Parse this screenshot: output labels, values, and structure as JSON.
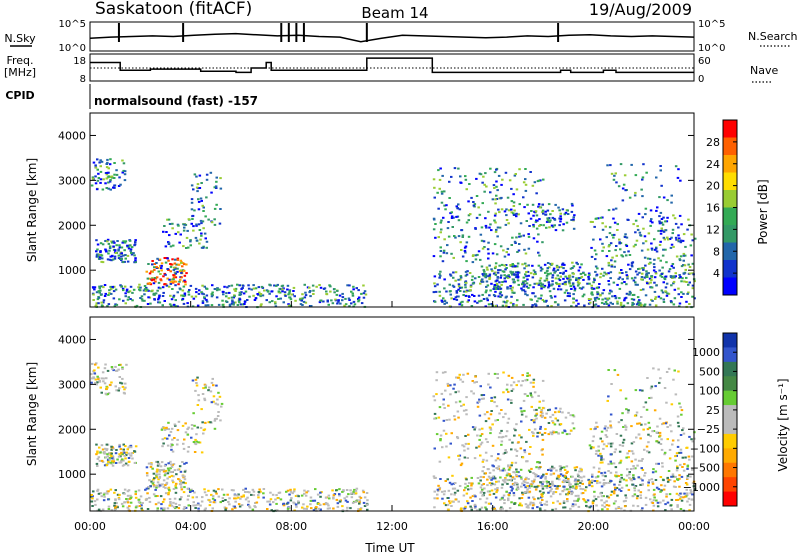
{
  "header": {
    "station": "Saskatoon (fitACF)",
    "beam": "Beam 14",
    "date": "19/Aug/2009"
  },
  "left_labels": {
    "nsky": "N.Sky",
    "freq": "Freq.",
    "freq_unit": "[MHz]",
    "cpid": "CPID"
  },
  "right_labels": {
    "nsearch": "N.Search",
    "nave": "Nave"
  },
  "cpid_text": "normalsound (fast) -157",
  "chart_data": [
    {
      "type": "line",
      "panel": "noise",
      "left_ticks": [
        "10^5",
        "10^0"
      ],
      "right_ticks": [
        "10^5",
        "10^0"
      ],
      "series": [
        {
          "name": "N.Sky",
          "values_log10": [
            2.2,
            2.4,
            2.5,
            2.6,
            2.5,
            2.7,
            2.9,
            3.0,
            2.8,
            2.6,
            2.7,
            2.5,
            2.4,
            1.6,
            2.2,
            2.7,
            2.6,
            2.5,
            2.4,
            2.3,
            2.4,
            2.6,
            2.5,
            2.7,
            2.8,
            2.6,
            2.5,
            2.6,
            2.5,
            2.4
          ]
        },
        {
          "name": "N.Search",
          "values_log10": []
        }
      ],
      "xlim": [
        0,
        24
      ]
    },
    {
      "type": "line",
      "panel": "frequency",
      "left_ticks": [
        "18",
        "8"
      ],
      "right_ticks": [
        "60",
        "0"
      ],
      "series": [
        {
          "name": "Freq.",
          "steps": [
            [
              0,
              15.5
            ],
            [
              1.2,
              12
            ],
            [
              2.4,
              12.5
            ],
            [
              4.4,
              11.5
            ],
            [
              5.8,
              11
            ],
            [
              6.4,
              13
            ],
            [
              6.7,
              13
            ],
            [
              7.0,
              15.5
            ],
            [
              7.2,
              12
            ],
            [
              11.0,
              17.5
            ],
            [
              13.6,
              11
            ],
            [
              18.7,
              12
            ],
            [
              19.1,
              11
            ],
            [
              20.4,
              12
            ],
            [
              20.9,
              11
            ],
            [
              24,
              11
            ]
          ]
        },
        {
          "name": "Nave",
          "level": 0.5
        }
      ],
      "xlim": [
        0,
        24
      ]
    },
    {
      "type": "heatmap",
      "panel": "power",
      "ylabel": "Slant Range [km]",
      "ylim": [
        180,
        4500
      ],
      "yticks": [
        1000,
        2000,
        3000,
        4000
      ],
      "xlim": [
        0,
        24
      ],
      "colorbar_label": "Power [dB]",
      "colorbar_ticks": [
        "28",
        "24",
        "20",
        "16",
        "12",
        "8",
        "4"
      ],
      "colorbar_colors": [
        "#ff0000",
        "#ff6000",
        "#ffa500",
        "#ffdd00",
        "#99cc33",
        "#33aa55",
        "#339966",
        "#2266aa",
        "#1133cc",
        "#0000ff"
      ]
    },
    {
      "type": "heatmap",
      "panel": "velocity",
      "ylabel": "Slant Range [km]",
      "ylim": [
        180,
        4500
      ],
      "yticks": [
        1000,
        2000,
        3000,
        4000
      ],
      "xlim": [
        0,
        24
      ],
      "xticks": [
        "00:00",
        "04:00",
        "08:00",
        "12:00",
        "16:00",
        "20:00",
        "00:00"
      ],
      "xlabel": "Time UT",
      "colorbar_label": "Velocity [m s⁻¹]",
      "colorbar_ticks": [
        "1000",
        "500",
        "100",
        "25",
        "−25",
        "−100",
        "−500",
        "−1000"
      ],
      "colorbar_colors": [
        "#1133aa",
        "#3355cc",
        "#337755",
        "#448844",
        "#66cc33",
        "#bbbbbb",
        "#bbbbbb",
        "#ffcc00",
        "#ffaa00",
        "#ff7700",
        "#ff4400",
        "#ff0000"
      ]
    }
  ]
}
